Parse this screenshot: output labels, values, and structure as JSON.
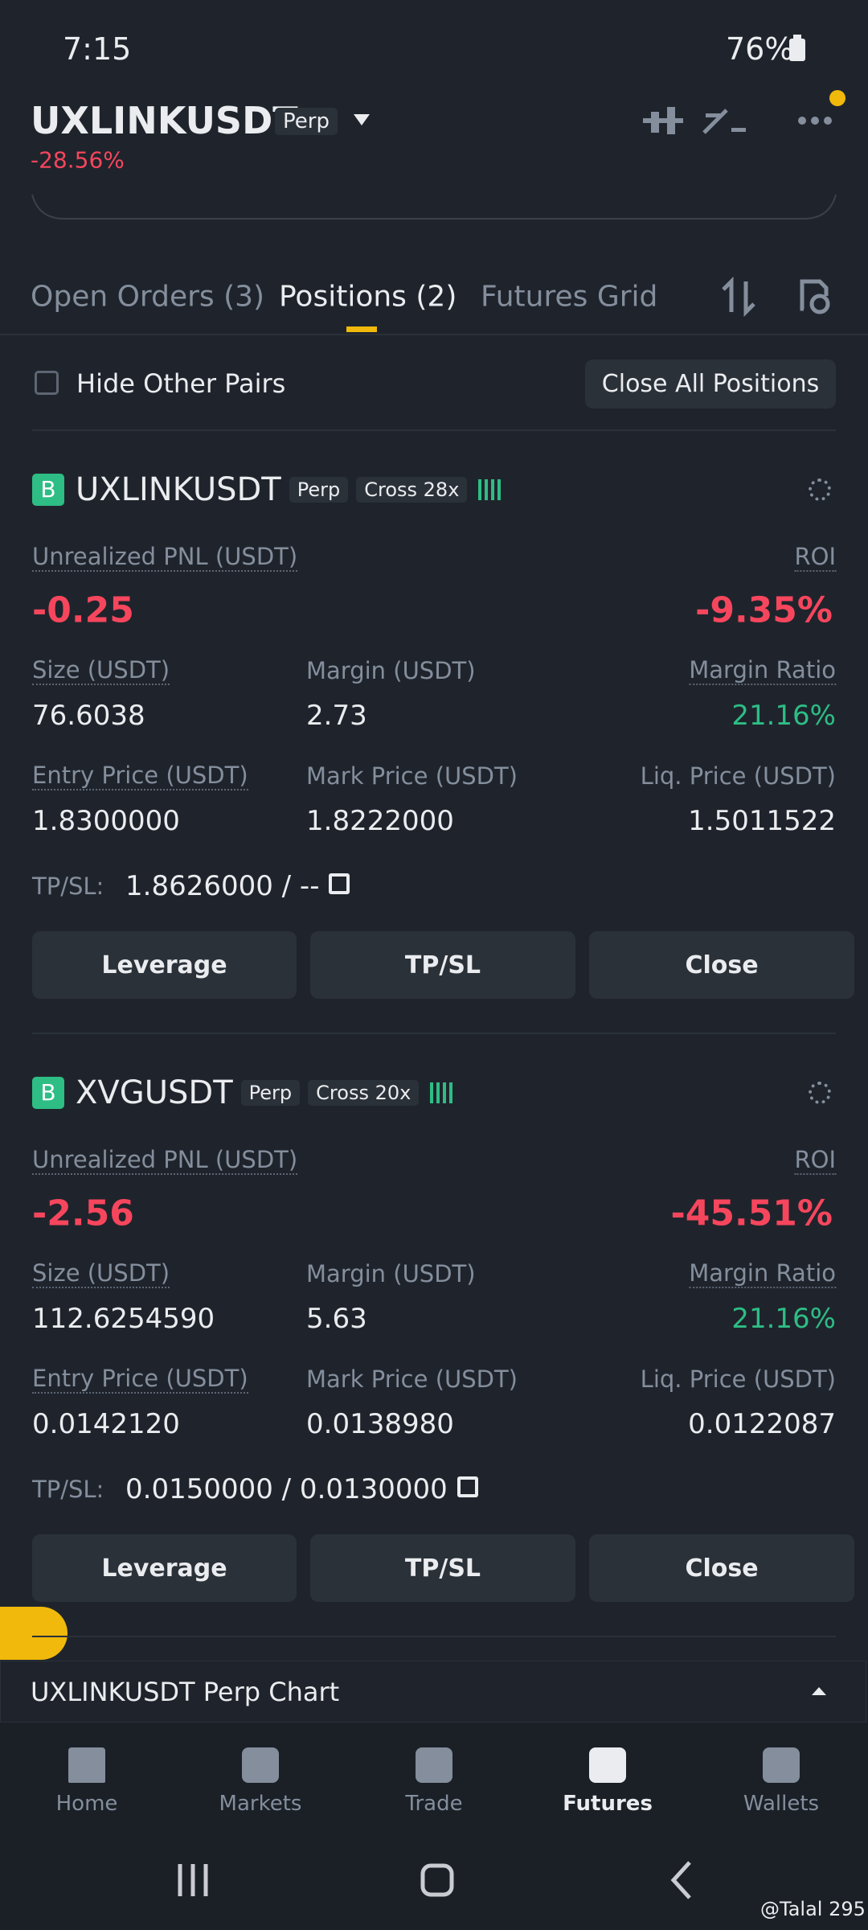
{
  "status_bar": {
    "time": "7:15",
    "battery": "76%"
  },
  "header": {
    "symbol": "UXLINKUSDT",
    "tag": "Perp",
    "change": "-28.56%"
  },
  "tabs": [
    "Open Orders (3)",
    "Positions (2)",
    "Futures Grid"
  ],
  "filter": {
    "hide_label": "Hide Other Pairs",
    "close_all": "Close All Positions"
  },
  "positions": [
    {
      "side": "B",
      "symbol": "UXLINKUSDT",
      "tag": "Perp",
      "margin_mode": "Cross 28x",
      "pnl_label": "Unrealized PNL (USDT)",
      "pnl": "-0.25",
      "roi_label": "ROI",
      "roi": "-9.35%",
      "size_label": "Size (USDT)",
      "size": "76.6038",
      "margin_label": "Margin (USDT)",
      "margin": "2.73",
      "ratio_label": "Margin Ratio",
      "ratio": "21.16%",
      "entry_label": "Entry Price (USDT)",
      "entry": "1.8300000",
      "mark_label": "Mark Price (USDT)",
      "mark": "1.8222000",
      "liq_label": "Liq. Price (USDT)",
      "liq": "1.5011522",
      "tpsl_label": "TP/SL:",
      "tpsl": "1.8626000 / --",
      "buttons": [
        "Leverage",
        "TP/SL",
        "Close"
      ]
    },
    {
      "side": "B",
      "symbol": "XVGUSDT",
      "tag": "Perp",
      "margin_mode": "Cross 20x",
      "pnl_label": "Unrealized PNL (USDT)",
      "pnl": "-2.56",
      "roi_label": "ROI",
      "roi": "-45.51%",
      "size_label": "Size (USDT)",
      "size": "112.6254590",
      "margin_label": "Margin (USDT)",
      "margin": "5.63",
      "ratio_label": "Margin Ratio",
      "ratio": "21.16%",
      "entry_label": "Entry Price (USDT)",
      "entry": "0.0142120",
      "mark_label": "Mark Price (USDT)",
      "mark": "0.0138980",
      "liq_label": "Liq. Price (USDT)",
      "liq": "0.0122087",
      "tpsl_label": "TP/SL:",
      "tpsl": "0.0150000 / 0.0130000",
      "buttons": [
        "Leverage",
        "TP/SL",
        "Close"
      ]
    }
  ],
  "chart_bar": "UXLINKUSDT Perp Chart",
  "nav": [
    "Home",
    "Markets",
    "Trade",
    "Futures",
    "Wallets"
  ],
  "watermark": "@Talal 295"
}
